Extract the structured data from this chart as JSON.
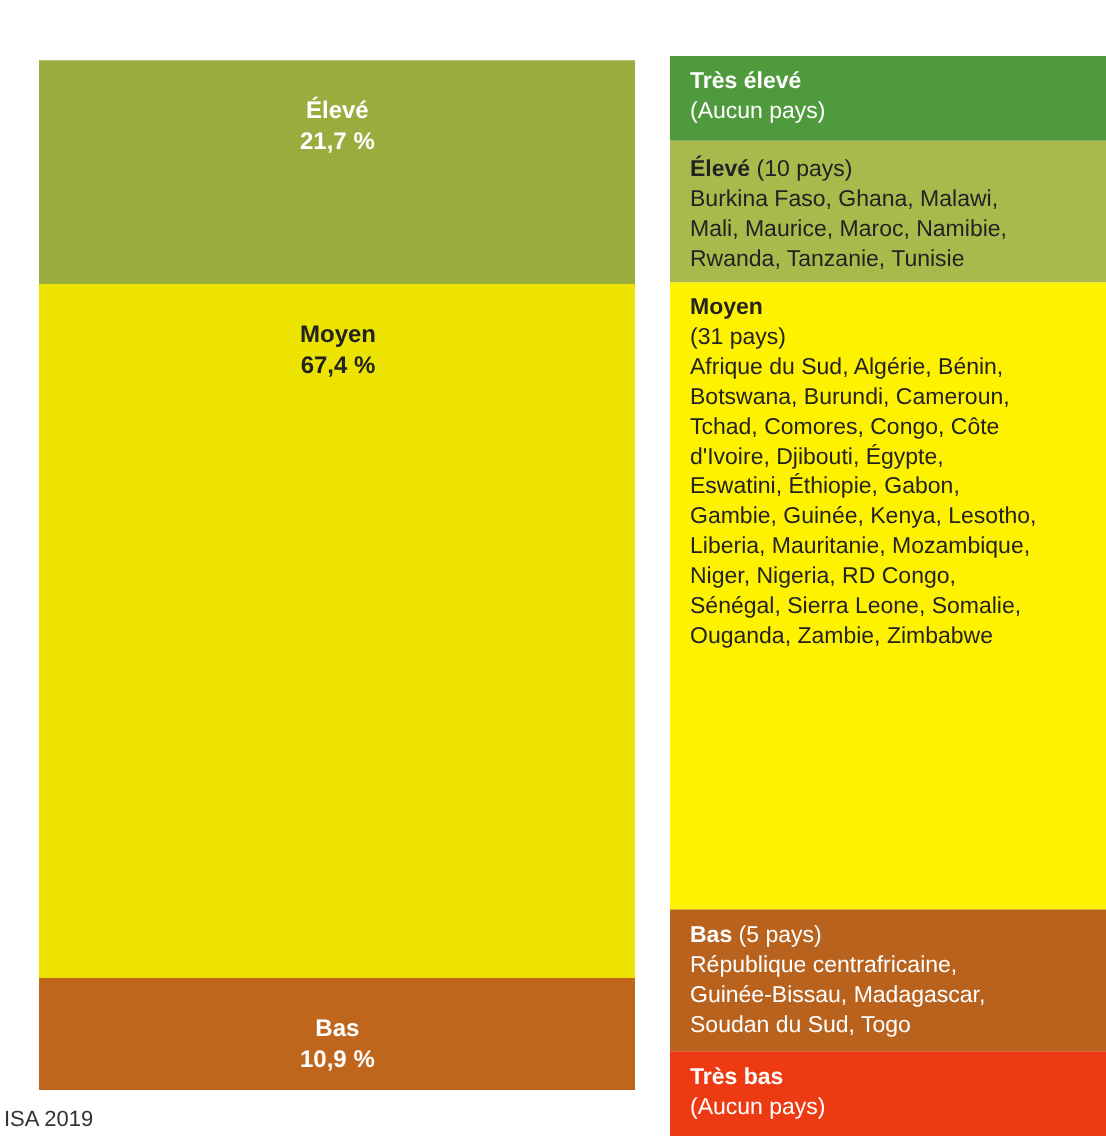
{
  "chart_data": [
    {
      "type": "bar",
      "stacked": true,
      "categories": [
        null
      ],
      "ylim": [
        0,
        100
      ],
      "tick_labels": false,
      "legend": false,
      "series": [
        {
          "name": "Bas",
          "color": "#c0661c",
          "values": [
            10.9
          ],
          "value_labels": [
            "10,9 %"
          ]
        },
        {
          "name": "Moyen",
          "color": "#ece400",
          "values": [
            67.4
          ],
          "value_labels": [
            "67,4 %"
          ]
        },
        {
          "name": "Élevé",
          "color": "#9aac3e",
          "values": [
            21.7
          ],
          "value_labels": [
            "21,7 %"
          ]
        }
      ],
      "annotations": [
        "ISA 2019"
      ]
    },
    {
      "type": "other",
      "categories": [
        "Très élevé",
        "Élevé",
        "Moyen",
        "Bas",
        "Très bas"
      ],
      "colors": [
        "#4f9a3c",
        "#aab94c",
        "#fff200",
        "#b8621e",
        "#ee3a12"
      ],
      "annotations": [
        "\n(Aucun pays)",
        " (10 pays)\nBurkina Faso, Ghana, Malawi,\nMali, Maurice, Maroc, Namibie,\nRwanda, Tanzanie, Tunisie",
        "\n(31 pays)\nAfrique du Sud, Algérie, Bénin,\nBotswana, Burundi, Cameroun,\nTchad, Comores, Congo, Côte\nd'Ivoire, Djibouti, Égypte,\nEswatini, Éthiopie, Gabon,\nGambie, Guinée, Kenya, Lesotho,\nLiberia, Mauritanie, Mozambique,\nNiger, Nigeria, RD Congo,\nSénégal, Sierra Leone, Somalie,\nOuganda, Zambie, Zimbabwe",
        " (5 pays)\nRépublique centrafricaine,\nGuinée-Bissau, Madagascar,\nSoudan du Sud, Togo",
        "\n(Aucun pays)"
      ]
    }
  ]
}
